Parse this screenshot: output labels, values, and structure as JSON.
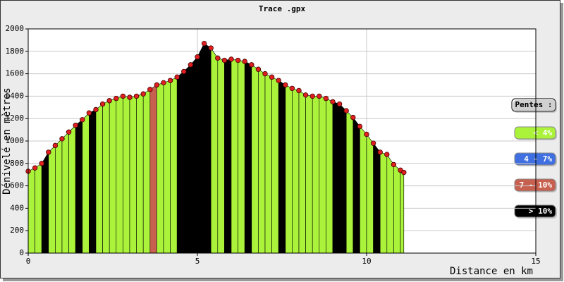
{
  "chart_data": {
    "type": "elevation-profile",
    "title": "Trace .gpx",
    "x_label": "Distance en km",
    "y_label": "Dénivelé en mètres",
    "x": [
      0,
      0.2,
      0.4,
      0.6,
      0.8,
      1.0,
      1.2,
      1.4,
      1.6,
      1.8,
      2.0,
      2.2,
      2.4,
      2.6,
      2.8,
      3.0,
      3.2,
      3.4,
      3.6,
      3.8,
      4.0,
      4.2,
      4.4,
      4.6,
      4.8,
      5.0,
      5.2,
      5.4,
      5.6,
      5.8,
      6.0,
      6.2,
      6.4,
      6.6,
      6.8,
      7.0,
      7.2,
      7.4,
      7.6,
      7.8,
      8.0,
      8.2,
      8.4,
      8.6,
      8.8,
      9.0,
      9.2,
      9.4,
      9.6,
      9.8,
      10.0,
      10.2,
      10.4,
      10.6,
      10.8,
      11.0,
      11.1
    ],
    "values": [
      730,
      760,
      800,
      900,
      960,
      1020,
      1080,
      1140,
      1190,
      1250,
      1280,
      1330,
      1360,
      1380,
      1400,
      1390,
      1400,
      1420,
      1460,
      1500,
      1520,
      1540,
      1570,
      1620,
      1680,
      1750,
      1870,
      1830,
      1740,
      1720,
      1730,
      1720,
      1710,
      1680,
      1640,
      1600,
      1570,
      1540,
      1500,
      1470,
      1450,
      1410,
      1400,
      1400,
      1380,
      1350,
      1330,
      1270,
      1210,
      1130,
      1060,
      980,
      900,
      880,
      790,
      740,
      720
    ],
    "segment_colors": [
      "#aaf33a",
      "#aaf33a",
      "#000000",
      "#aaf33a",
      "#aaf33a",
      "#aaf33a",
      "#aaf33a",
      "#000000",
      "#aaf33a",
      "#000000",
      "#aaf33a",
      "#aaf33a",
      "#aaf33a",
      "#aaf33a",
      "#aaf33a",
      "#aaf33a",
      "#aaf33a",
      "#aaf33a",
      "#c8604f",
      "#aaf33a",
      "#aaf33a",
      "#aaf33a",
      "#000000",
      "#000000",
      "#000000",
      "#000000",
      "#000000",
      "#aaf33a",
      "#aaf33a",
      "#000000",
      "#aaf33a",
      "#aaf33a",
      "#000000",
      "#aaf33a",
      "#aaf33a",
      "#aaf33a",
      "#aaf33a",
      "#000000",
      "#aaf33a",
      "#aaf33a",
      "#aaf33a",
      "#aaf33a",
      "#aaf33a",
      "#aaf33a",
      "#aaf33a",
      "#000000",
      "#000000",
      "#aaf33a",
      "#000000",
      "#aaf33a",
      "#aaf33a",
      "#000000",
      "#aaf33a",
      "#aaf33a",
      "#aaf33a",
      "#aaf33a"
    ],
    "point_color": "#e02020",
    "xlim": [
      0,
      15
    ],
    "xticks": [
      0,
      5,
      10,
      15
    ],
    "ylim": [
      0,
      2000
    ],
    "yticks": [
      0,
      200,
      400,
      600,
      800,
      1000,
      1200,
      1400,
      1600,
      1800,
      2000
    ],
    "grid": true,
    "legend_title": "Pentes :",
    "legend": [
      {
        "name": "< 4%",
        "color": "#aaf33a"
      },
      {
        "name": "4 - 7%",
        "color": "#3f6fe0"
      },
      {
        "name": "7 - 10%",
        "color": "#c8604f"
      },
      {
        "name": "> 10%",
        "color": "#000000"
      }
    ]
  }
}
